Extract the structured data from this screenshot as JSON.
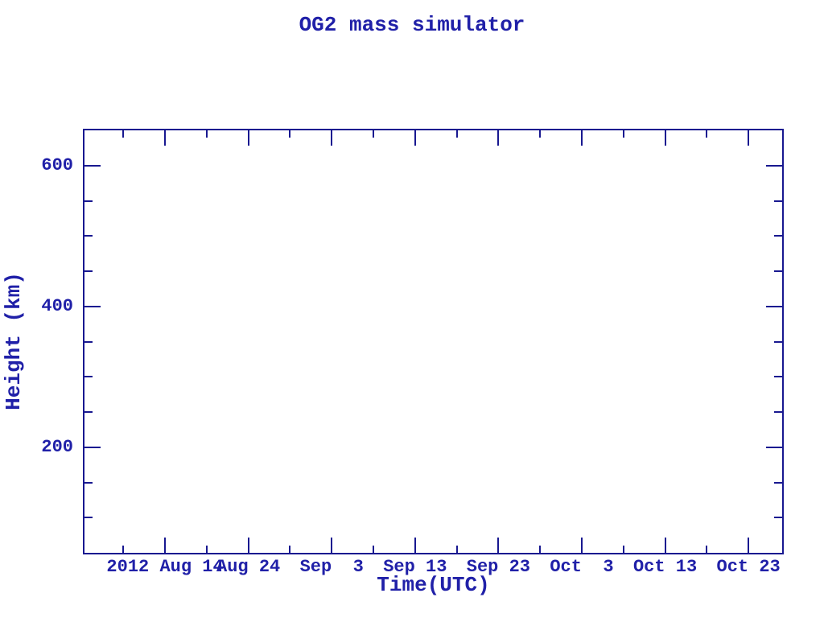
{
  "page": {
    "background": "#ffffff"
  },
  "chart_data": {
    "type": "line",
    "title": "OG2 mass simulator",
    "xlabel": "Time(UTC)",
    "ylabel": "Height (km)",
    "series": [],
    "x_axis": {
      "tick_labels": [
        "2012 Aug 14",
        "Aug 24",
        "Sep  3",
        "Sep 13",
        "Sep 23",
        "Oct  3",
        "Oct 13",
        "Oct 23"
      ],
      "major_tick_days": [
        10,
        20,
        30,
        40,
        50,
        60,
        70,
        80
      ],
      "minor_tick_days": [
        5,
        15,
        25,
        35,
        45,
        55,
        65,
        75
      ],
      "range_days": [
        0.34,
        84.04
      ],
      "day_reference": "day 0 = 2012 Aug 4"
    },
    "y_axis": {
      "tick_labels": [
        "600",
        "400",
        "200"
      ],
      "major_tick_values": [
        600,
        400,
        200
      ],
      "minor_tick_values": [
        550,
        500,
        450,
        350,
        300,
        250,
        150,
        100
      ],
      "range": [
        50,
        650
      ]
    },
    "grid": false,
    "legend": false,
    "colors": {
      "text": "#2020a8",
      "axis": "#181890",
      "plot_background": "#ffffff"
    }
  }
}
